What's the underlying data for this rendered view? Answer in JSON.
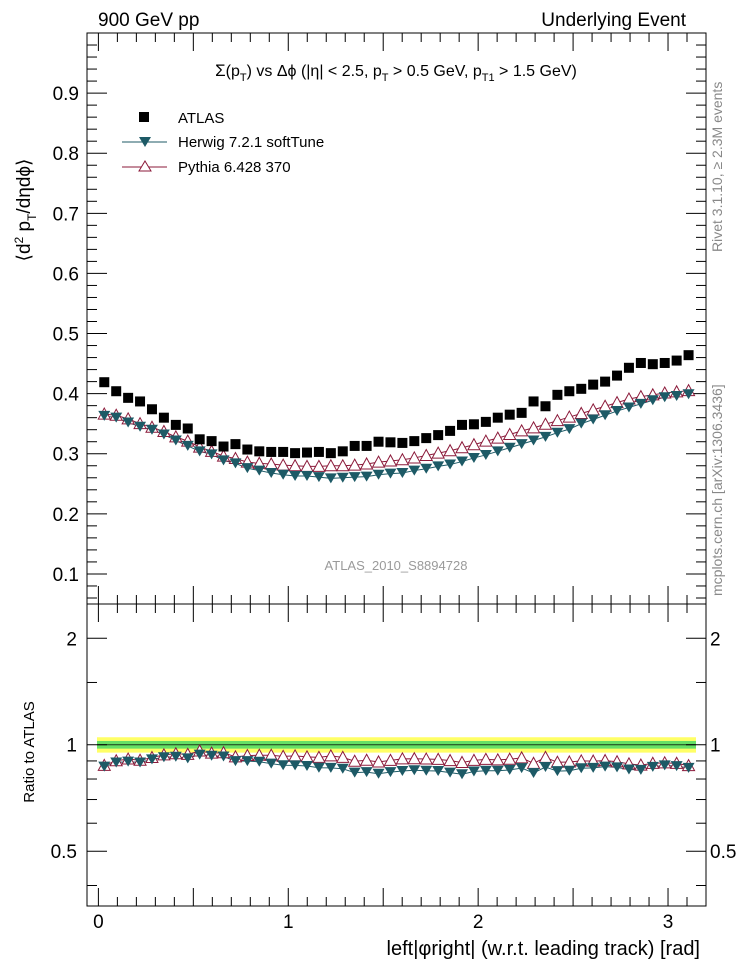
{
  "header": {
    "left": "900 GeV pp",
    "right": "Underlying Event"
  },
  "side_labels": {
    "rivet": "Rivet 3.1.10, ≥ 2.3M events",
    "mcplots": "mcplots.cern.ch [arXiv:1306.3436]"
  },
  "watermark": "ATLAS_2010_S8894728",
  "colors": {
    "atlas": "#000000",
    "herwig": "#1d5a66",
    "pythia": "#8b1a3a",
    "band_inner": "#66e066",
    "band_outer": "#ffff66"
  },
  "chart_data": [
    {
      "type": "scatter",
      "title": "Σ(p_T) vs Δφ (|η| < 2.5, p_T > 0.5 GeV, p_T1 > 1.5 GeV)",
      "ylabel": "⟨d² p_T/dηdφ⟩",
      "xlim": [
        -0.06,
        3.2
      ],
      "ylim": [
        0.05,
        1.0
      ],
      "yticks": [
        0.1,
        0.2,
        0.3,
        0.4,
        0.5,
        0.6,
        0.7,
        0.8,
        0.9
      ],
      "legend": [
        "ATLAS",
        "Herwig 7.2.1 softTune",
        "Pythia 6.428 370"
      ],
      "legend_position": "top-left",
      "n_points": 50,
      "x_start": 0.031,
      "x_step": 0.0628,
      "series": [
        {
          "name": "ATLAS",
          "marker": "filled-square",
          "values": [
            0.419,
            0.404,
            0.393,
            0.387,
            0.374,
            0.36,
            0.348,
            0.342,
            0.324,
            0.321,
            0.312,
            0.316,
            0.307,
            0.304,
            0.303,
            0.303,
            0.301,
            0.302,
            0.303,
            0.301,
            0.304,
            0.313,
            0.313,
            0.32,
            0.319,
            0.318,
            0.321,
            0.326,
            0.331,
            0.338,
            0.348,
            0.349,
            0.353,
            0.36,
            0.365,
            0.368,
            0.387,
            0.379,
            0.398,
            0.404,
            0.408,
            0.415,
            0.42,
            0.43,
            0.443,
            0.451,
            0.449,
            0.451,
            0.455,
            0.464
          ]
        },
        {
          "name": "Herwig 7.2.1 softTune",
          "marker": "filled-triangle-down",
          "values": [
            0.363,
            0.36,
            0.352,
            0.345,
            0.34,
            0.332,
            0.322,
            0.313,
            0.304,
            0.299,
            0.289,
            0.284,
            0.276,
            0.272,
            0.268,
            0.265,
            0.263,
            0.263,
            0.261,
            0.259,
            0.26,
            0.261,
            0.262,
            0.265,
            0.267,
            0.268,
            0.272,
            0.275,
            0.279,
            0.282,
            0.287,
            0.293,
            0.298,
            0.304,
            0.31,
            0.316,
            0.322,
            0.328,
            0.335,
            0.341,
            0.35,
            0.357,
            0.364,
            0.371,
            0.377,
            0.383,
            0.389,
            0.394,
            0.396,
            0.399
          ]
        },
        {
          "name": "Pythia 6.428 370",
          "marker": "open-triangle-up",
          "values": [
            0.366,
            0.364,
            0.358,
            0.35,
            0.344,
            0.337,
            0.328,
            0.321,
            0.311,
            0.304,
            0.296,
            0.292,
            0.286,
            0.284,
            0.283,
            0.281,
            0.28,
            0.279,
            0.279,
            0.28,
            0.28,
            0.281,
            0.283,
            0.286,
            0.288,
            0.29,
            0.293,
            0.297,
            0.301,
            0.305,
            0.31,
            0.315,
            0.321,
            0.326,
            0.332,
            0.338,
            0.343,
            0.349,
            0.355,
            0.361,
            0.367,
            0.373,
            0.379,
            0.385,
            0.391,
            0.395,
            0.398,
            0.401,
            0.403,
            0.405
          ]
        }
      ]
    },
    {
      "type": "scatter",
      "ylabel": "Ratio to ATLAS",
      "xlabel": "left|φright| (w.r.t. leading track) [rad]",
      "xlim": [
        -0.06,
        3.2
      ],
      "ylim": [
        0.35,
        2.5
      ],
      "log_y": true,
      "yticks": [
        0.5,
        1,
        2
      ],
      "xticks": [
        0,
        1,
        2,
        3
      ],
      "reference_band": {
        "inner": [
          0.975,
          1.025
        ],
        "outer": [
          0.95,
          1.05
        ]
      },
      "series": [
        {
          "name": "Herwig 7.2.1 softTune",
          "values": [
            0.867,
            0.891,
            0.896,
            0.891,
            0.909,
            0.922,
            0.925,
            0.915,
            0.938,
            0.931,
            0.926,
            0.899,
            0.899,
            0.895,
            0.884,
            0.875,
            0.874,
            0.871,
            0.861,
            0.86,
            0.855,
            0.834,
            0.837,
            0.828,
            0.837,
            0.843,
            0.847,
            0.844,
            0.843,
            0.834,
            0.825,
            0.84,
            0.844,
            0.844,
            0.849,
            0.859,
            0.832,
            0.865,
            0.842,
            0.844,
            0.858,
            0.86,
            0.867,
            0.863,
            0.851,
            0.849,
            0.866,
            0.874,
            0.87,
            0.86
          ]
        },
        {
          "name": "Pythia 6.428 370",
          "values": [
            0.874,
            0.901,
            0.911,
            0.904,
            0.92,
            0.936,
            0.943,
            0.939,
            0.96,
            0.947,
            0.949,
            0.924,
            0.932,
            0.934,
            0.934,
            0.927,
            0.93,
            0.924,
            0.921,
            0.93,
            0.921,
            0.898,
            0.904,
            0.894,
            0.903,
            0.912,
            0.913,
            0.911,
            0.909,
            0.902,
            0.891,
            0.903,
            0.909,
            0.906,
            0.91,
            0.918,
            0.886,
            0.921,
            0.892,
            0.894,
            0.9,
            0.899,
            0.902,
            0.895,
            0.883,
            0.876,
            0.886,
            0.889,
            0.886,
            0.873
          ]
        }
      ]
    }
  ]
}
